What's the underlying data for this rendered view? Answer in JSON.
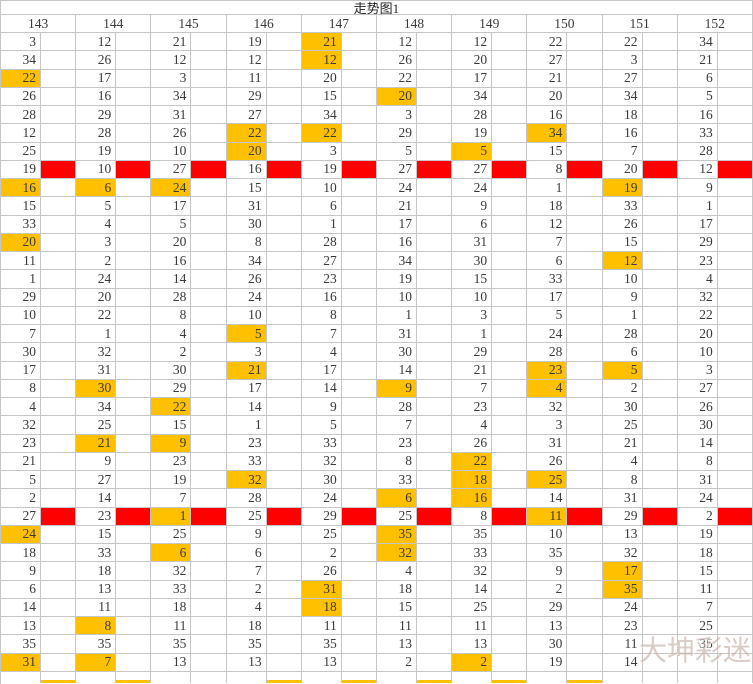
{
  "title": "走势图1",
  "watermark": "大坤彩迷",
  "colors": {
    "highlight": "#FFC000",
    "red_marker": "#FE0000",
    "grid_line": "#C6C6C6",
    "text": "#3A3A3A",
    "watermark": "#C9B4AC"
  },
  "chart_data": {
    "type": "table",
    "title": "走势图1",
    "columns": [
      "143",
      "144",
      "145",
      "146",
      "147",
      "148",
      "149",
      "150",
      "151",
      "152"
    ],
    "values": [
      [
        "3",
        "12",
        "21",
        "19",
        "21",
        "12",
        "12",
        "22",
        "22",
        "34"
      ],
      [
        "34",
        "26",
        "12",
        "12",
        "12",
        "26",
        "20",
        "27",
        "3",
        "21"
      ],
      [
        "22",
        "17",
        "3",
        "11",
        "20",
        "22",
        "17",
        "21",
        "27",
        "6"
      ],
      [
        "26",
        "16",
        "34",
        "29",
        "15",
        "20",
        "34",
        "20",
        "34",
        "5"
      ],
      [
        "28",
        "29",
        "31",
        "27",
        "34",
        "3",
        "28",
        "16",
        "18",
        "16"
      ],
      [
        "12",
        "28",
        "26",
        "22",
        "22",
        "29",
        "19",
        "34",
        "16",
        "33"
      ],
      [
        "25",
        "19",
        "10",
        "20",
        "3",
        "5",
        "5",
        "15",
        "7",
        "28"
      ],
      [
        "19",
        "10",
        "27",
        "16",
        "19",
        "27",
        "27",
        "8",
        "20",
        "12"
      ],
      [
        "16",
        "6",
        "24",
        "15",
        "10",
        "24",
        "24",
        "1",
        "19",
        "9"
      ],
      [
        "15",
        "5",
        "17",
        "31",
        "6",
        "21",
        "9",
        "18",
        "33",
        "1"
      ],
      [
        "33",
        "4",
        "5",
        "30",
        "1",
        "17",
        "6",
        "12",
        "26",
        "17"
      ],
      [
        "20",
        "3",
        "20",
        "8",
        "28",
        "16",
        "31",
        "7",
        "15",
        "29"
      ],
      [
        "11",
        "2",
        "16",
        "34",
        "27",
        "34",
        "30",
        "6",
        "12",
        "23"
      ],
      [
        "1",
        "24",
        "14",
        "26",
        "23",
        "19",
        "15",
        "33",
        "10",
        "4"
      ],
      [
        "29",
        "20",
        "28",
        "24",
        "16",
        "10",
        "10",
        "17",
        "9",
        "32"
      ],
      [
        "10",
        "22",
        "8",
        "10",
        "8",
        "1",
        "3",
        "5",
        "1",
        "22"
      ],
      [
        "7",
        "1",
        "4",
        "5",
        "7",
        "31",
        "1",
        "24",
        "28",
        "20"
      ],
      [
        "30",
        "32",
        "2",
        "3",
        "4",
        "30",
        "29",
        "28",
        "6",
        "10"
      ],
      [
        "17",
        "31",
        "30",
        "21",
        "17",
        "14",
        "21",
        "23",
        "5",
        "3"
      ],
      [
        "8",
        "30",
        "29",
        "17",
        "14",
        "9",
        "7",
        "4",
        "2",
        "27"
      ],
      [
        "4",
        "34",
        "22",
        "14",
        "9",
        "28",
        "23",
        "32",
        "30",
        "26"
      ],
      [
        "32",
        "25",
        "15",
        "1",
        "5",
        "7",
        "4",
        "3",
        "25",
        "30"
      ],
      [
        "23",
        "21",
        "9",
        "23",
        "33",
        "23",
        "26",
        "31",
        "21",
        "14"
      ],
      [
        "21",
        "9",
        "23",
        "33",
        "32",
        "8",
        "22",
        "26",
        "4",
        "8"
      ],
      [
        "5",
        "27",
        "19",
        "32",
        "30",
        "33",
        "18",
        "25",
        "8",
        "31"
      ],
      [
        "2",
        "14",
        "7",
        "28",
        "24",
        "6",
        "16",
        "14",
        "31",
        "24"
      ],
      [
        "27",
        "23",
        "1",
        "25",
        "29",
        "25",
        "8",
        "11",
        "29",
        "2"
      ],
      [
        "24",
        "15",
        "25",
        "9",
        "25",
        "35",
        "35",
        "10",
        "13",
        "19"
      ],
      [
        "18",
        "33",
        "6",
        "6",
        "2",
        "32",
        "33",
        "35",
        "32",
        "18"
      ],
      [
        "9",
        "18",
        "32",
        "7",
        "26",
        "4",
        "32",
        "9",
        "17",
        "15"
      ],
      [
        "6",
        "13",
        "33",
        "2",
        "31",
        "18",
        "14",
        "2",
        "35",
        "11"
      ],
      [
        "14",
        "11",
        "18",
        "4",
        "18",
        "15",
        "25",
        "29",
        "24",
        "7"
      ],
      [
        "13",
        "8",
        "11",
        "18",
        "11",
        "11",
        "11",
        "13",
        "23",
        "25"
      ],
      [
        "35",
        "35",
        "35",
        "35",
        "35",
        "13",
        "13",
        "30",
        "11",
        "35"
      ],
      [
        "31",
        "7",
        "13",
        "13",
        "13",
        "2",
        "2",
        "19",
        "14",
        ""
      ]
    ],
    "highlighted_cells": [
      [
        1,
        4
      ],
      [
        2,
        4
      ],
      [
        3,
        0
      ],
      [
        4,
        5
      ],
      [
        6,
        3
      ],
      [
        6,
        4
      ],
      [
        6,
        7
      ],
      [
        7,
        3
      ],
      [
        7,
        6
      ],
      [
        9,
        0
      ],
      [
        9,
        1
      ],
      [
        9,
        2
      ],
      [
        9,
        8
      ],
      [
        12,
        0
      ],
      [
        13,
        8
      ],
      [
        17,
        3
      ],
      [
        19,
        3
      ],
      [
        19,
        7
      ],
      [
        19,
        8
      ],
      [
        20,
        1
      ],
      [
        20,
        5
      ],
      [
        20,
        7
      ],
      [
        21,
        2
      ],
      [
        23,
        1
      ],
      [
        23,
        2
      ],
      [
        24,
        6
      ],
      [
        25,
        3
      ],
      [
        25,
        6
      ],
      [
        25,
        7
      ],
      [
        26,
        5
      ],
      [
        26,
        6
      ],
      [
        27,
        2
      ],
      [
        27,
        7
      ],
      [
        28,
        0
      ],
      [
        28,
        5
      ],
      [
        29,
        2
      ],
      [
        29,
        5
      ],
      [
        30,
        8
      ],
      [
        31,
        4
      ],
      [
        31,
        8
      ],
      [
        32,
        4
      ],
      [
        33,
        1
      ],
      [
        35,
        0
      ],
      [
        35,
        1
      ],
      [
        35,
        6
      ]
    ],
    "red_marker_rows": [
      8,
      27
    ],
    "bottom_partial_highlight_cols": [
      0,
      1,
      3,
      4,
      5,
      6,
      7
    ],
    "layout": {
      "grid": true,
      "header_position": "top",
      "rows_count": 35
    }
  }
}
